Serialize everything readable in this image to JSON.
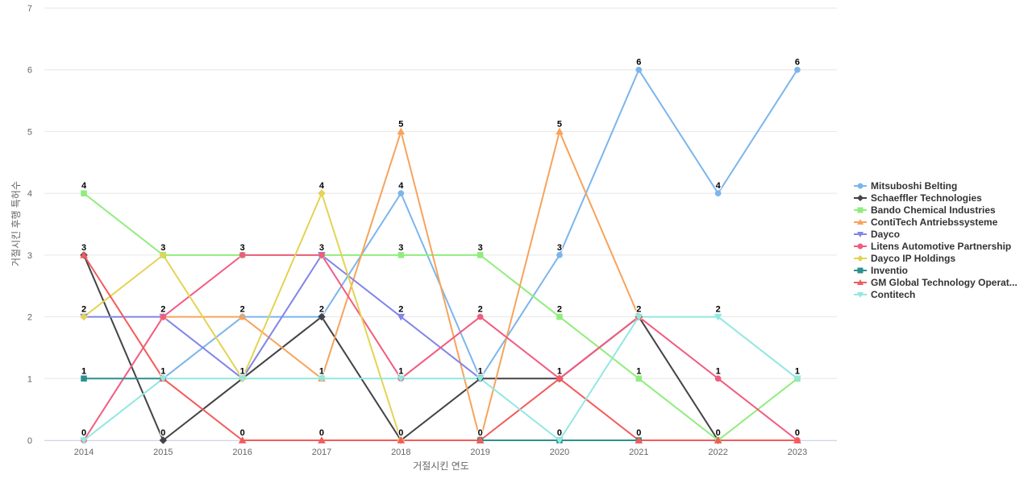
{
  "chart_data": {
    "type": "line",
    "title": "",
    "xlabel": "거절시킨 연도",
    "ylabel": "거절시킨 후행 특허수",
    "x": [
      "2014",
      "2015",
      "2016",
      "2017",
      "2018",
      "2019",
      "2020",
      "2021",
      "2022",
      "2023"
    ],
    "ylim": [
      0,
      7
    ],
    "yticks": [
      0,
      1,
      2,
      3,
      4,
      5,
      6,
      7
    ],
    "grid": true,
    "legend_position": "right",
    "series": [
      {
        "name": "Mitsuboshi Belting",
        "color": "#7cb5ec",
        "marker": "circle",
        "values": [
          null,
          1,
          2,
          2,
          4,
          1,
          3,
          6,
          4,
          6
        ]
      },
      {
        "name": "Schaeffler Technologies",
        "color": "#434348",
        "marker": "diamond",
        "values": [
          3,
          0,
          1,
          2,
          0,
          1,
          1,
          2,
          0,
          null
        ]
      },
      {
        "name": "Bando Chemical Industries",
        "color": "#90ed7d",
        "marker": "square",
        "values": [
          4,
          3,
          3,
          3,
          3,
          3,
          2,
          1,
          0,
          1
        ]
      },
      {
        "name": "ContiTech Antriebssysteme",
        "color": "#f7a35c",
        "marker": "triangle",
        "values": [
          null,
          2,
          2,
          1,
          5,
          0,
          5,
          2,
          null,
          null
        ]
      },
      {
        "name": "Dayco",
        "color": "#8085e9",
        "marker": "triangle-down",
        "values": [
          2,
          2,
          1,
          3,
          2,
          1,
          null,
          null,
          null,
          null
        ]
      },
      {
        "name": "Litens Automotive Partnership",
        "color": "#f15c80",
        "marker": "circle",
        "values": [
          0,
          2,
          3,
          3,
          1,
          2,
          1,
          2,
          1,
          0
        ]
      },
      {
        "name": "Dayco IP Holdings",
        "color": "#e4d354",
        "marker": "diamond",
        "values": [
          2,
          3,
          1,
          4,
          0,
          null,
          null,
          null,
          null,
          null
        ]
      },
      {
        "name": "Inventio",
        "color": "#2b908f",
        "marker": "square",
        "values": [
          1,
          1,
          null,
          null,
          null,
          0,
          0,
          0,
          null,
          null
        ]
      },
      {
        "name": "GM Global Technology Operat...",
        "color": "#f45b5b",
        "marker": "triangle",
        "values": [
          3,
          1,
          0,
          0,
          0,
          0,
          1,
          0,
          0,
          0
        ]
      },
      {
        "name": "Contitech",
        "color": "#91e8e1",
        "marker": "triangle-down",
        "values": [
          0,
          1,
          1,
          1,
          1,
          1,
          0,
          2,
          2,
          1
        ]
      }
    ],
    "data_labels": [
      {
        "x": "2014",
        "text": "4",
        "y": 4
      },
      {
        "x": "2014",
        "text": "3",
        "y": 3
      },
      {
        "x": "2014",
        "text": "2",
        "y": 2
      },
      {
        "x": "2014",
        "text": "1",
        "y": 1
      },
      {
        "x": "2014",
        "text": "0",
        "y": 0
      },
      {
        "x": "2015",
        "text": "3",
        "y": 3
      },
      {
        "x": "2015",
        "text": "2",
        "y": 2
      },
      {
        "x": "2015",
        "text": "1",
        "y": 1
      },
      {
        "x": "2015",
        "text": "0",
        "y": 0
      },
      {
        "x": "2016",
        "text": "3",
        "y": 3
      },
      {
        "x": "2016",
        "text": "2",
        "y": 2
      },
      {
        "x": "2016",
        "text": "1",
        "y": 1
      },
      {
        "x": "2016",
        "text": "0",
        "y": 0
      },
      {
        "x": "2017",
        "text": "4",
        "y": 4
      },
      {
        "x": "2017",
        "text": "3",
        "y": 3
      },
      {
        "x": "2017",
        "text": "2",
        "y": 2
      },
      {
        "x": "2017",
        "text": "1",
        "y": 1
      },
      {
        "x": "2017",
        "text": "0",
        "y": 0
      },
      {
        "x": "2018",
        "text": "5",
        "y": 5
      },
      {
        "x": "2018",
        "text": "4",
        "y": 4
      },
      {
        "x": "2018",
        "text": "3",
        "y": 3
      },
      {
        "x": "2018",
        "text": "2",
        "y": 2
      },
      {
        "x": "2018",
        "text": "1",
        "y": 1
      },
      {
        "x": "2018",
        "text": "0",
        "y": 0
      },
      {
        "x": "2019",
        "text": "3",
        "y": 3
      },
      {
        "x": "2019",
        "text": "2",
        "y": 2
      },
      {
        "x": "2019",
        "text": "1",
        "y": 1
      },
      {
        "x": "2019",
        "text": "0",
        "y": 0
      },
      {
        "x": "2020",
        "text": "5",
        "y": 5
      },
      {
        "x": "2020",
        "text": "3",
        "y": 3
      },
      {
        "x": "2020",
        "text": "2",
        "y": 2
      },
      {
        "x": "2020",
        "text": "1",
        "y": 1
      },
      {
        "x": "2020",
        "text": "0",
        "y": 0
      },
      {
        "x": "2021",
        "text": "6",
        "y": 6
      },
      {
        "x": "2021",
        "text": "2",
        "y": 2
      },
      {
        "x": "2021",
        "text": "1",
        "y": 1
      },
      {
        "x": "2021",
        "text": "0",
        "y": 0
      },
      {
        "x": "2022",
        "text": "4",
        "y": 4
      },
      {
        "x": "2022",
        "text": "2",
        "y": 2
      },
      {
        "x": "2022",
        "text": "1",
        "y": 1
      },
      {
        "x": "2022",
        "text": "0",
        "y": 0
      },
      {
        "x": "2023",
        "text": "6",
        "y": 6
      },
      {
        "x": "2023",
        "text": "1",
        "y": 1
      },
      {
        "x": "2023",
        "text": "0",
        "y": 0
      }
    ]
  }
}
